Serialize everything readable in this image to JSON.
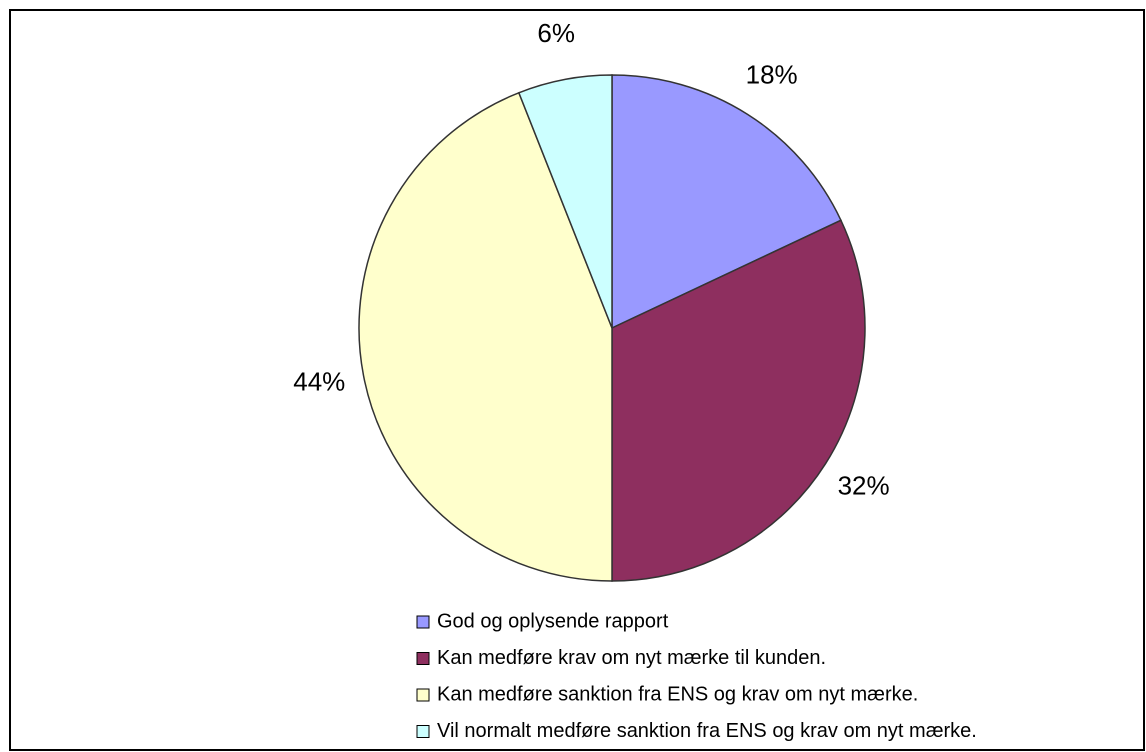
{
  "chart_data": {
    "type": "pie",
    "categories": [
      "God og oplysende rapport",
      "Kan medføre krav om nyt mærke til kunden.",
      "Kan medføre sanktion fra ENS og krav om nyt mærke.",
      "Vil normalt medføre sanktion fra ENS og krav om nyt mærke."
    ],
    "values": [
      18,
      32,
      44,
      6
    ],
    "value_labels": [
      "18%",
      "32%",
      "44%",
      "6%"
    ],
    "colors": [
      "#9999ff",
      "#8e2f5f",
      "#ffffcc",
      "#ccffff"
    ]
  }
}
